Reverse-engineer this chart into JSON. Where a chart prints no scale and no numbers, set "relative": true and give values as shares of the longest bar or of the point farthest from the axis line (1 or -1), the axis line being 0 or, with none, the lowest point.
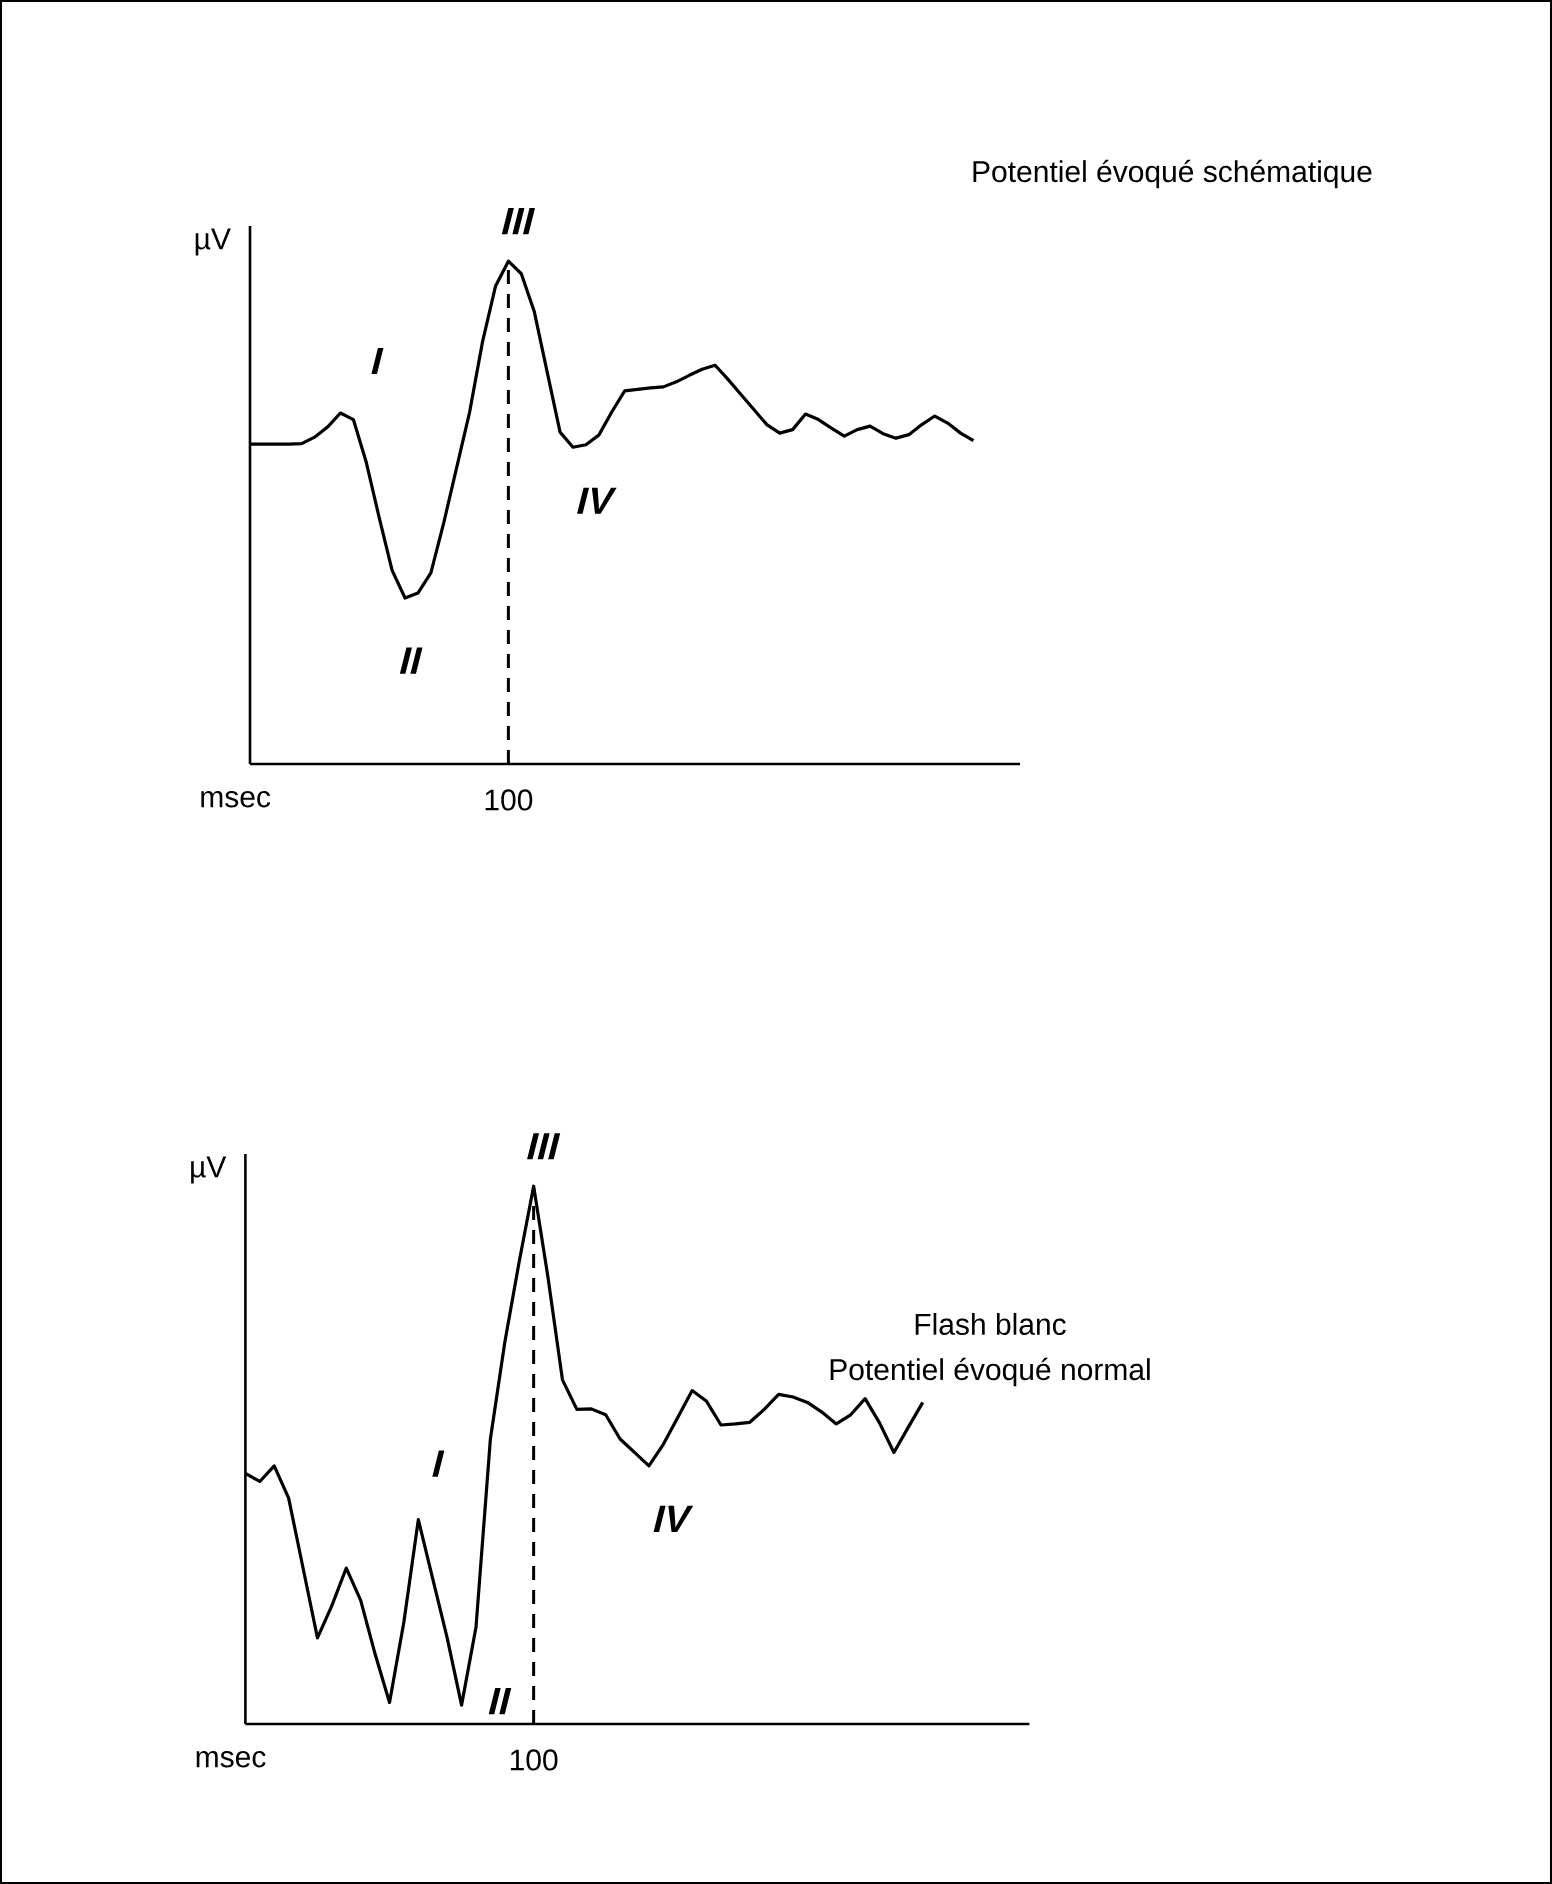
{
  "chart_data": [
    {
      "type": "line",
      "title": "Potentiel évoqué schématique",
      "xlabel": "msec",
      "ylabel": "µV",
      "relative": true,
      "marker": "none",
      "line_style": "solid",
      "categories": [
        null,
        null,
        null,
        null,
        null,
        null,
        null,
        null,
        null,
        null,
        null,
        null,
        null,
        null,
        null,
        null,
        null,
        null,
        null,
        null,
        null,
        null,
        null,
        null,
        null,
        null,
        null,
        null,
        null,
        null,
        null,
        null,
        null,
        null,
        null,
        null,
        null,
        null,
        null,
        null,
        null,
        null,
        null,
        null,
        null,
        null,
        null,
        null,
        null,
        null,
        null,
        null,
        null,
        null,
        null,
        null,
        null
      ],
      "series": [
        {
          "color": "#000000",
          "values": [
            0.636,
            0.636,
            0.636,
            0.636,
            0.637,
            0.65,
            0.67,
            0.698,
            0.685,
            0.6,
            0.49,
            0.385,
            0.33,
            0.34,
            0.38,
            0.48,
            0.59,
            0.7,
            0.84,
            0.95,
            1.0,
            0.975,
            0.9,
            0.78,
            0.66,
            0.63,
            0.635,
            0.654,
            0.7,
            0.742,
            0.745,
            0.748,
            0.75,
            0.76,
            0.773,
            0.785,
            0.793,
            0.765,
            0.735,
            0.705,
            0.675,
            0.658,
            0.665,
            0.696,
            0.685,
            0.668,
            0.652,
            0.665,
            0.672,
            0.657,
            0.648,
            0.655,
            0.675,
            0.692,
            0.678,
            0.658,
            0.643
          ]
        }
      ],
      "annotations": [
        "I",
        "II",
        "III",
        "IV",
        "100"
      ]
    },
    {
      "type": "line",
      "title": "Flash blanc",
      "subtitle": "Potentiel évoqué normal",
      "xlabel": "msec",
      "ylabel": "µV",
      "relative": true,
      "marker": "none",
      "line_style": "solid",
      "categories": [
        null,
        null,
        null,
        null,
        null,
        null,
        null,
        null,
        null,
        null,
        null,
        null,
        null,
        null,
        null,
        null,
        null,
        null,
        null,
        null,
        null,
        null,
        null,
        null,
        null,
        null,
        null,
        null,
        null,
        null,
        null,
        null,
        null,
        null,
        null,
        null,
        null,
        null,
        null,
        null,
        null,
        null,
        null,
        null,
        null,
        null,
        null,
        null
      ],
      "series": [
        {
          "color": "#000000",
          "values": [
            0.466,
            0.451,
            0.48,
            0.42,
            0.29,
            0.16,
            0.22,
            0.29,
            0.23,
            0.13,
            0.04,
            0.19,
            0.38,
            0.27,
            0.16,
            0.035,
            0.18,
            0.53,
            0.71,
            0.86,
            1.0,
            0.83,
            0.64,
            0.585,
            0.586,
            0.575,
            0.53,
            0.505,
            0.48,
            0.52,
            0.57,
            0.62,
            0.6,
            0.556,
            0.558,
            0.561,
            0.585,
            0.613,
            0.608,
            0.598,
            0.58,
            0.558,
            0.575,
            0.605,
            0.56,
            0.505,
            0.552,
            0.598
          ]
        }
      ],
      "annotations": [
        "I",
        "II",
        "III",
        "IV",
        "100"
      ]
    }
  ]
}
